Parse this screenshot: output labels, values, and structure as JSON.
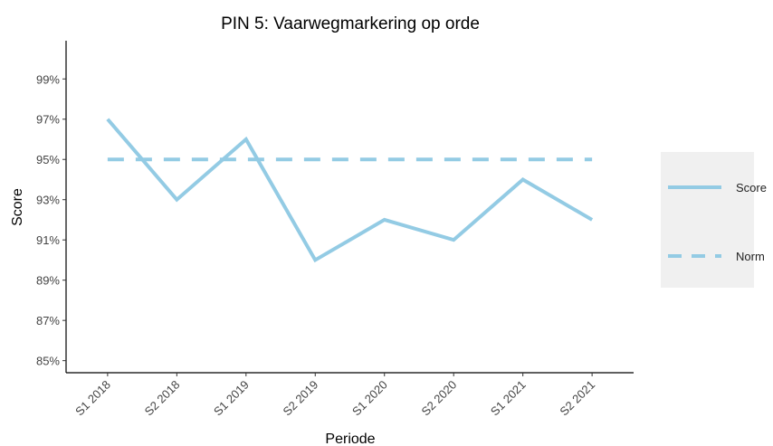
{
  "chart_data": {
    "type": "line",
    "title": "PIN 5: Vaarwegmarkering op orde",
    "x_label": "Periode",
    "y_label": "Score",
    "categories": [
      "S1 2018",
      "S2 2018",
      "S1 2019",
      "S2 2019",
      "S1 2020",
      "S2 2020",
      "S1 2021",
      "S2 2021"
    ],
    "series": [
      {
        "name": "Score",
        "color": "#93cbe4",
        "dash": false,
        "values": [
          97,
          93,
          96,
          90,
          92,
          91,
          94,
          92
        ]
      },
      {
        "name": "Norm",
        "color": "#93cbe4",
        "dash": true,
        "values": [
          95,
          95,
          95,
          95,
          95,
          95,
          95,
          95
        ]
      }
    ],
    "ylim": [
      84.4,
      100.9
    ],
    "yticks": [
      {
        "value": 85,
        "label": "85%"
      },
      {
        "value": 87,
        "label": "87%"
      },
      {
        "value": 89,
        "label": "89%"
      },
      {
        "value": 91,
        "label": "91%"
      },
      {
        "value": 93,
        "label": "93%"
      },
      {
        "value": 95,
        "label": "95%"
      },
      {
        "value": 97,
        "label": "97%"
      },
      {
        "value": 99,
        "label": "99%"
      }
    ],
    "grid": false,
    "legend": "right"
  }
}
